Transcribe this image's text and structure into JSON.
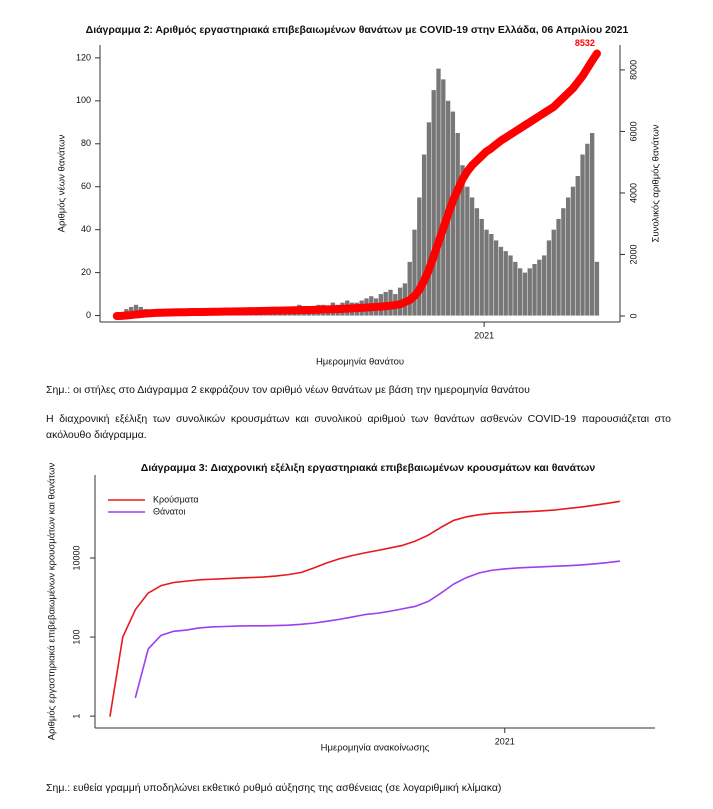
{
  "chart_data": [
    {
      "type": "bar",
      "title": "Διάγραμμα 2: Αριθμός εργαστηριακά επιβεβαιωμένων θανάτων με COVID-19 στην Ελλάδα, 06 Απριλίου 2021",
      "x_label": "Ημερομηνία θανάτου",
      "y_label": "Αριθμός νέων θανάτων",
      "y2_label": "Συνολικός αριθμός θανάτων",
      "categories": [
        null,
        null,
        null,
        null,
        null,
        null,
        null,
        null,
        null,
        null,
        null,
        null,
        null,
        null,
        null,
        null,
        null,
        null,
        null,
        null,
        null,
        null,
        null,
        null,
        null,
        null,
        null,
        null,
        null,
        null,
        null,
        null,
        null,
        null,
        null,
        null,
        null,
        null,
        null,
        null,
        null,
        null,
        null,
        null,
        null,
        null,
        null,
        null,
        null,
        null,
        null,
        null,
        null,
        null,
        null,
        null,
        null,
        null,
        null,
        null,
        null,
        null,
        null,
        null,
        null,
        null,
        null,
        null,
        null,
        null,
        null,
        null,
        null,
        null,
        null,
        null,
        null,
        null,
        null,
        null,
        null,
        null,
        null,
        null,
        null,
        null,
        null,
        null,
        null,
        null,
        null,
        null,
        null,
        null,
        null,
        null,
        null,
        null,
        null,
        null,
        null
      ],
      "series": [
        {
          "type": "bar",
          "color": "#777777",
          "values": [
            0,
            1,
            3,
            4,
            5,
            4,
            3,
            2,
            2,
            1,
            1,
            1,
            1,
            0,
            0,
            1,
            0,
            0,
            0,
            0,
            0,
            0,
            0,
            1,
            1,
            1,
            1,
            2,
            2,
            2,
            3,
            2,
            2,
            3,
            2,
            3,
            3,
            4,
            5,
            4,
            3,
            4,
            5,
            5,
            4,
            6,
            5,
            6,
            7,
            6,
            6,
            7,
            8,
            9,
            8,
            10,
            11,
            12,
            10,
            13,
            15,
            25,
            40,
            55,
            75,
            90,
            105,
            115,
            110,
            100,
            95,
            85,
            70,
            60,
            55,
            50,
            45,
            40,
            38,
            35,
            32,
            30,
            28,
            25,
            22,
            20,
            22,
            24,
            26,
            28,
            35,
            40,
            45,
            50,
            55,
            60,
            65,
            75,
            80,
            85,
            25
          ]
        },
        {
          "type": "line",
          "axis": "y2",
          "color": "#ff0000",
          "label_last": true,
          "values": [
            0,
            5,
            15,
            30,
            50,
            65,
            80,
            90,
            100,
            105,
            110,
            115,
            118,
            120,
            122,
            125,
            128,
            130,
            132,
            135,
            138,
            140,
            142,
            145,
            148,
            150,
            152,
            155,
            158,
            160,
            163,
            166,
            170,
            173,
            176,
            180,
            183,
            186,
            190,
            193,
            197,
            200,
            205,
            210,
            215,
            220,
            225,
            232,
            240,
            248,
            255,
            265,
            275,
            285,
            295,
            305,
            320,
            335,
            355,
            380,
            450,
            520,
            650,
            850,
            1150,
            1500,
            1950,
            2400,
            2850,
            3300,
            3750,
            4100,
            4450,
            4700,
            4900,
            5050,
            5200,
            5350,
            5450,
            5580,
            5700,
            5800,
            5900,
            6000,
            6100,
            6200,
            6300,
            6400,
            6500,
            6600,
            6700,
            6800,
            6950,
            7100,
            7250,
            7400,
            7600,
            7800,
            8050,
            8300,
            8532
          ]
        }
      ],
      "xlim": [
        -3.5,
        104.8
      ],
      "xticks": [
        {
          "value": 76.5,
          "label": "2021"
        }
      ],
      "ylim": [
        -3,
        126
      ],
      "yticks": [
        0,
        20,
        40,
        60,
        80,
        100,
        120
      ],
      "y2lim": [
        -195,
        8810
      ],
      "y2ticks": [
        0,
        2000,
        4000,
        6000,
        8000
      ],
      "grid": false
    },
    {
      "type": "line",
      "title": "Διάγραμμα 3: Διαχρονική εξέλιξη εργαστηριακά επιβεβαιωμένων κρουσμάτων και θανάτων",
      "x_label": "Ημερομηνία ανακοίνωσης",
      "y_label": "Αριθμός εργαστηριακά επιβεβαιωμένων κρουσμάτων και θανάτων",
      "categories": [
        null,
        null,
        null,
        null,
        null,
        null,
        null,
        null,
        null,
        null,
        null,
        null,
        null,
        null,
        null,
        null,
        null,
        null,
        null,
        null,
        null,
        null,
        null,
        null,
        null,
        null,
        null,
        null,
        null,
        null,
        null,
        null,
        null,
        null,
        null,
        null,
        null,
        null,
        null,
        null,
        null
      ],
      "series": [
        {
          "name": "Κρούσματα",
          "type": "line",
          "color": "#e8191d",
          "values": [
            1,
            100,
            500,
            1300,
            2000,
            2400,
            2600,
            2800,
            2900,
            3000,
            3100,
            3200,
            3300,
            3500,
            3800,
            4300,
            5600,
            7500,
            9500,
            11500,
            13500,
            15500,
            18000,
            21000,
            27000,
            38000,
            60000,
            90000,
            110000,
            125000,
            135000,
            140000,
            145000,
            150000,
            156000,
            165000,
            180000,
            195000,
            215000,
            240000,
            270000
          ]
        },
        {
          "name": "Θάνατοι",
          "type": "line",
          "color": "#9b3ff0",
          "values": [
            null,
            null,
            3,
            50,
            110,
            140,
            150,
            170,
            180,
            185,
            190,
            192,
            193,
            195,
            200,
            210,
            225,
            250,
            280,
            320,
            370,
            400,
            450,
            520,
            600,
            800,
            1300,
            2200,
            3200,
            4200,
            4900,
            5300,
            5600,
            5800,
            6000,
            6200,
            6400,
            6700,
            7100,
            7600,
            8300
          ]
        }
      ],
      "xlim": [
        -1.18,
        42.8
      ],
      "xticks": [
        {
          "value": 31,
          "label": "2021"
        }
      ],
      "ylim": [
        0.5,
        1260000
      ],
      "yticks": [
        1,
        100,
        10000
      ],
      "log_y": true,
      "legend": "top-left",
      "grid": false
    }
  ],
  "document": {
    "note_1": "Σημ.: οι στήλες στο Διάγραμμα 2 εκφράζουν τον αριθμό νέων θανάτων με βάση την ημερομηνία θανάτου",
    "paragraph": "Η διαχρονική εξέλιξη των συνολικών κρουσμάτων και συνολικού αριθμού των θανάτων ασθενών COVID-19 παρουσιάζεται στο ακόλουθο διάγραμμα.",
    "note_2": "Σημ.: ευθεία γραμμή υποδηλώνει εκθετικό ρυθμό αύξησης της ασθένειας (σε λογαριθμική κλίμακα)"
  }
}
